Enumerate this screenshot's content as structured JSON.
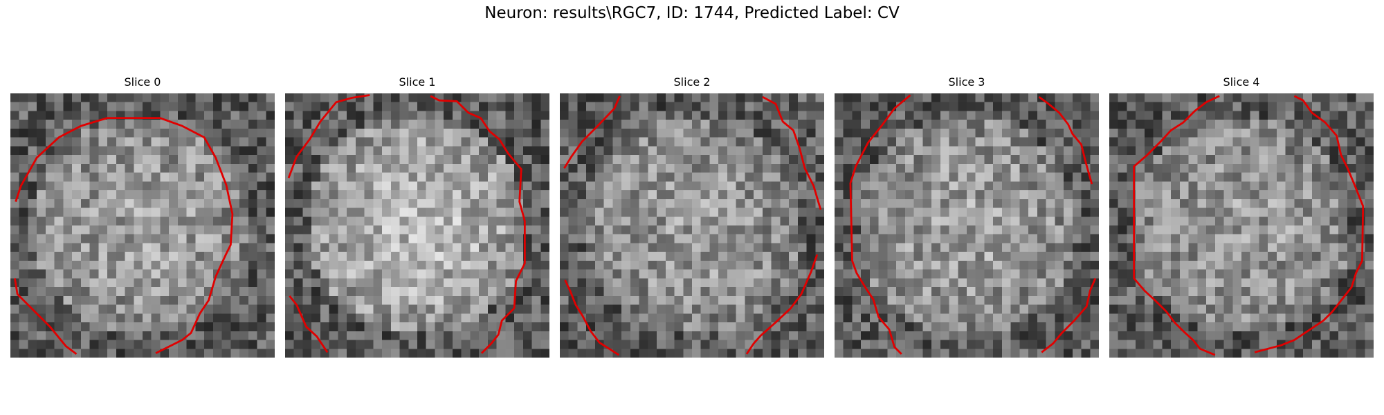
{
  "figure": {
    "title": "Neuron: results\\RGC7, ID: 1744, Predicted Label: CV",
    "grid_size": 30,
    "colormap": "gray",
    "contour_color": "#e00000",
    "panels": [
      {
        "label": "Slice 0",
        "seed": 11,
        "center_brightness": 0.62,
        "contours": [
          [
            [
              0.6,
              12.3
            ],
            [
              1.2,
              10.5
            ],
            [
              3.0,
              7.3
            ],
            [
              5.5,
              5.0
            ],
            [
              8.0,
              3.7
            ],
            [
              11.0,
              2.8
            ],
            [
              17.0,
              2.8
            ],
            [
              19.5,
              3.7
            ],
            [
              22.0,
              5.0
            ],
            [
              23.3,
              7.3
            ],
            [
              24.5,
              10.4
            ],
            [
              25.2,
              13.7
            ],
            [
              25.0,
              17.2
            ],
            [
              24.5,
              18.2
            ],
            [
              23.3,
              20.8
            ],
            [
              22.5,
              23.5
            ],
            [
              21.5,
              25.0
            ],
            [
              20.5,
              27.2
            ],
            [
              19.5,
              28.0
            ],
            [
              17.5,
              29.0
            ],
            [
              16.5,
              29.5
            ]
          ],
          [
            [
              0.5,
              21.0
            ],
            [
              0.8,
              22.8
            ],
            [
              2.5,
              24.5
            ],
            [
              4.5,
              26.5
            ],
            [
              6.3,
              28.7
            ],
            [
              7.5,
              29.6
            ]
          ]
        ]
      },
      {
        "label": "Slice 1",
        "seed": 23,
        "center_brightness": 0.72,
        "contours": [
          [
            [
              0.4,
              9.6
            ],
            [
              1.3,
              7.2
            ],
            [
              2.8,
              5.2
            ],
            [
              4.0,
              3.2
            ],
            [
              5.8,
              1.0
            ],
            [
              7.6,
              0.5
            ],
            [
              9.6,
              0.2
            ]
          ],
          [
            [
              16.5,
              0.3
            ],
            [
              17.5,
              0.8
            ],
            [
              19.5,
              0.9
            ],
            [
              20.8,
              2.2
            ],
            [
              22.2,
              2.8
            ],
            [
              23.2,
              4.3
            ],
            [
              24.3,
              5.2
            ],
            [
              25.3,
              6.8
            ],
            [
              26.8,
              8.6
            ],
            [
              26.6,
              12.3
            ],
            [
              27.2,
              14.5
            ],
            [
              27.2,
              19.3
            ],
            [
              26.2,
              21.3
            ],
            [
              26.0,
              24.4
            ],
            [
              24.6,
              25.8
            ],
            [
              24.2,
              27.4
            ],
            [
              23.4,
              28.4
            ],
            [
              22.3,
              29.5
            ]
          ],
          [
            [
              0.5,
              23.0
            ],
            [
              1.3,
              24.0
            ],
            [
              2.4,
              26.5
            ],
            [
              3.6,
              27.6
            ],
            [
              4.8,
              29.4
            ]
          ]
        ]
      },
      {
        "label": "Slice 2",
        "seed": 37,
        "center_brightness": 0.6,
        "contours": [
          [
            [
              0.5,
              8.5
            ],
            [
              1.3,
              7.2
            ],
            [
              2.5,
              5.5
            ],
            [
              4.2,
              3.8
            ],
            [
              6.2,
              1.7
            ],
            [
              6.8,
              0.3
            ]
          ],
          [
            [
              23.0,
              0.4
            ],
            [
              24.5,
              1.2
            ],
            [
              25.3,
              3.2
            ],
            [
              26.5,
              4.2
            ],
            [
              27.2,
              6.2
            ],
            [
              27.8,
              8.5
            ],
            [
              28.8,
              10.5
            ],
            [
              29.6,
              13.2
            ]
          ],
          [
            [
              0.6,
              21.2
            ],
            [
              1.2,
              22.5
            ],
            [
              1.8,
              24.0
            ],
            [
              2.6,
              25.3
            ],
            [
              3.5,
              27.0
            ],
            [
              4.5,
              28.3
            ],
            [
              6.7,
              29.7
            ]
          ],
          [
            [
              29.2,
              18.3
            ],
            [
              28.5,
              20.3
            ],
            [
              27.4,
              22.8
            ],
            [
              26.2,
              24.4
            ],
            [
              24.5,
              26.0
            ],
            [
              22.8,
              27.5
            ],
            [
              22.0,
              28.4
            ],
            [
              21.2,
              29.6
            ]
          ]
        ]
      },
      {
        "label": "Slice 3",
        "seed": 53,
        "center_brightness": 0.62,
        "contours": [
          [
            [
              8.6,
              0.2
            ],
            [
              6.8,
              1.7
            ],
            [
              5.4,
              3.6
            ],
            [
              3.8,
              5.6
            ],
            [
              2.4,
              8.3
            ],
            [
              1.8,
              10.2
            ],
            [
              2.0,
              19.0
            ],
            [
              2.5,
              20.4
            ],
            [
              3.6,
              22.2
            ],
            [
              4.4,
              23.4
            ],
            [
              5.0,
              25.4
            ],
            [
              6.2,
              26.8
            ],
            [
              6.8,
              28.8
            ],
            [
              7.6,
              29.6
            ]
          ],
          [
            [
              23.2,
              0.4
            ],
            [
              24.3,
              1.2
            ],
            [
              25.5,
              2.2
            ],
            [
              26.5,
              3.5
            ],
            [
              27.0,
              4.6
            ],
            [
              28.0,
              5.8
            ],
            [
              28.5,
              7.8
            ],
            [
              29.2,
              10.3
            ]
          ],
          [
            [
              29.6,
              21.0
            ],
            [
              29.0,
              22.4
            ],
            [
              28.6,
              24.2
            ],
            [
              27.2,
              25.8
            ],
            [
              25.8,
              27.2
            ],
            [
              24.8,
              28.4
            ],
            [
              23.5,
              29.4
            ]
          ]
        ]
      },
      {
        "label": "Slice 4",
        "seed": 71,
        "center_brightness": 0.6,
        "contours": [
          [
            [
              12.5,
              0.3
            ],
            [
              11.0,
              1.0
            ],
            [
              9.7,
              2.0
            ],
            [
              8.4,
              3.3
            ],
            [
              7.0,
              4.2
            ],
            [
              5.8,
              5.5
            ],
            [
              4.3,
              7.0
            ],
            [
              2.8,
              8.3
            ],
            [
              2.8,
              21.0
            ],
            [
              4.0,
              22.4
            ],
            [
              5.3,
              23.6
            ],
            [
              6.5,
              24.8
            ],
            [
              7.4,
              26.0
            ],
            [
              8.4,
              27.0
            ],
            [
              9.5,
              28.0
            ],
            [
              10.3,
              29.0
            ],
            [
              12.0,
              29.7
            ]
          ],
          [
            [
              21.0,
              0.3
            ],
            [
              22.0,
              0.8
            ],
            [
              23.0,
              2.2
            ],
            [
              24.5,
              3.3
            ],
            [
              25.8,
              4.8
            ],
            [
              26.3,
              7.0
            ],
            [
              27.0,
              8.4
            ],
            [
              27.8,
              10.3
            ],
            [
              28.8,
              12.8
            ],
            [
              28.7,
              19.0
            ],
            [
              28.0,
              20.4
            ],
            [
              27.5,
              22.0
            ],
            [
              26.4,
              23.4
            ],
            [
              25.3,
              24.8
            ],
            [
              24.3,
              25.8
            ],
            [
              22.8,
              26.8
            ],
            [
              21.0,
              28.0
            ],
            [
              19.5,
              28.6
            ],
            [
              16.5,
              29.4
            ]
          ]
        ]
      }
    ]
  }
}
